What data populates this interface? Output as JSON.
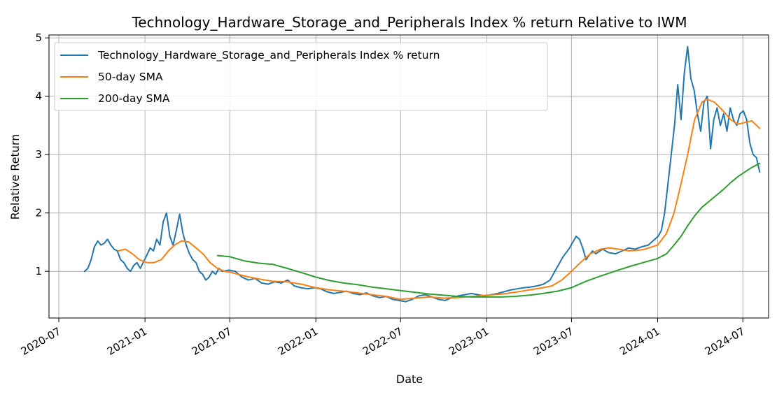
{
  "chart_data": {
    "type": "line",
    "title": "Technology_Hardware_Storage_and_Peripherals Index % return Relative to IWM",
    "xlabel": "Date",
    "ylabel": "Relative Return",
    "xlim": [
      "2020-06-10",
      "2024-08-25"
    ],
    "ylim": [
      0.2,
      5.05
    ],
    "x_ticks": [
      "2020-07",
      "2021-01",
      "2021-07",
      "2022-01",
      "2022-07",
      "2023-01",
      "2023-07",
      "2024-01",
      "2024-07"
    ],
    "y_ticks": [
      1,
      2,
      3,
      4,
      5
    ],
    "grid": true,
    "legend_position": "upper-left",
    "series": [
      {
        "name": "Technology_Hardware_Storage_and_Peripherals Index % return",
        "color": "#1f77b4",
        "points": [
          [
            "2020-08-25",
            1.0
          ],
          [
            "2020-09-01",
            1.05
          ],
          [
            "2020-09-08",
            1.2
          ],
          [
            "2020-09-15",
            1.42
          ],
          [
            "2020-09-22",
            1.52
          ],
          [
            "2020-09-29",
            1.45
          ],
          [
            "2020-10-06",
            1.48
          ],
          [
            "2020-10-13",
            1.55
          ],
          [
            "2020-10-20",
            1.45
          ],
          [
            "2020-10-27",
            1.38
          ],
          [
            "2020-11-03",
            1.35
          ],
          [
            "2020-11-10",
            1.2
          ],
          [
            "2020-11-17",
            1.15
          ],
          [
            "2020-11-24",
            1.05
          ],
          [
            "2020-12-01",
            1.0
          ],
          [
            "2020-12-08",
            1.1
          ],
          [
            "2020-12-15",
            1.15
          ],
          [
            "2020-12-22",
            1.05
          ],
          [
            "2021-01-05",
            1.28
          ],
          [
            "2021-01-12",
            1.4
          ],
          [
            "2021-01-19",
            1.35
          ],
          [
            "2021-01-26",
            1.55
          ],
          [
            "2021-02-02",
            1.45
          ],
          [
            "2021-02-09",
            1.85
          ],
          [
            "2021-02-16",
            2.0
          ],
          [
            "2021-02-23",
            1.6
          ],
          [
            "2021-03-02",
            1.45
          ],
          [
            "2021-03-09",
            1.7
          ],
          [
            "2021-03-16",
            1.98
          ],
          [
            "2021-03-23",
            1.65
          ],
          [
            "2021-03-30",
            1.45
          ],
          [
            "2021-04-06",
            1.3
          ],
          [
            "2021-04-13",
            1.2
          ],
          [
            "2021-04-20",
            1.15
          ],
          [
            "2021-04-27",
            1.0
          ],
          [
            "2021-05-04",
            0.95
          ],
          [
            "2021-05-11",
            0.85
          ],
          [
            "2021-05-18",
            0.9
          ],
          [
            "2021-05-25",
            1.0
          ],
          [
            "2021-06-01",
            0.95
          ],
          [
            "2021-06-08",
            1.05
          ],
          [
            "2021-06-15",
            1.0
          ],
          [
            "2021-06-29",
            1.02
          ],
          [
            "2021-07-13",
            1.0
          ],
          [
            "2021-07-27",
            0.9
          ],
          [
            "2021-08-10",
            0.85
          ],
          [
            "2021-08-24",
            0.88
          ],
          [
            "2021-09-07",
            0.8
          ],
          [
            "2021-09-21",
            0.78
          ],
          [
            "2021-10-05",
            0.82
          ],
          [
            "2021-10-19",
            0.8
          ],
          [
            "2021-11-02",
            0.85
          ],
          [
            "2021-11-16",
            0.75
          ],
          [
            "2021-11-30",
            0.72
          ],
          [
            "2021-12-14",
            0.7
          ],
          [
            "2021-12-28",
            0.72
          ],
          [
            "2022-01-11",
            0.7
          ],
          [
            "2022-01-25",
            0.65
          ],
          [
            "2022-02-08",
            0.62
          ],
          [
            "2022-02-22",
            0.64
          ],
          [
            "2022-03-08",
            0.66
          ],
          [
            "2022-03-22",
            0.62
          ],
          [
            "2022-04-05",
            0.6
          ],
          [
            "2022-04-19",
            0.63
          ],
          [
            "2022-05-03",
            0.58
          ],
          [
            "2022-05-17",
            0.55
          ],
          [
            "2022-05-31",
            0.57
          ],
          [
            "2022-06-14",
            0.52
          ],
          [
            "2022-06-28",
            0.5
          ],
          [
            "2022-07-12",
            0.48
          ],
          [
            "2022-07-26",
            0.52
          ],
          [
            "2022-08-09",
            0.58
          ],
          [
            "2022-08-23",
            0.6
          ],
          [
            "2022-09-06",
            0.56
          ],
          [
            "2022-09-20",
            0.52
          ],
          [
            "2022-10-04",
            0.5
          ],
          [
            "2022-10-18",
            0.55
          ],
          [
            "2022-11-01",
            0.58
          ],
          [
            "2022-11-15",
            0.6
          ],
          [
            "2022-11-29",
            0.62
          ],
          [
            "2022-12-13",
            0.6
          ],
          [
            "2022-12-27",
            0.58
          ],
          [
            "2023-01-10",
            0.6
          ],
          [
            "2023-01-24",
            0.62
          ],
          [
            "2023-02-07",
            0.65
          ],
          [
            "2023-02-21",
            0.68
          ],
          [
            "2023-03-07",
            0.7
          ],
          [
            "2023-03-21",
            0.72
          ],
          [
            "2023-04-04",
            0.73
          ],
          [
            "2023-04-18",
            0.75
          ],
          [
            "2023-05-02",
            0.78
          ],
          [
            "2023-05-16",
            0.85
          ],
          [
            "2023-05-30",
            1.05
          ],
          [
            "2023-06-13",
            1.25
          ],
          [
            "2023-06-27",
            1.4
          ],
          [
            "2023-07-04",
            1.5
          ],
          [
            "2023-07-11",
            1.6
          ],
          [
            "2023-07-18",
            1.55
          ],
          [
            "2023-07-25",
            1.4
          ],
          [
            "2023-08-01",
            1.2
          ],
          [
            "2023-08-08",
            1.28
          ],
          [
            "2023-08-15",
            1.35
          ],
          [
            "2023-08-22",
            1.3
          ],
          [
            "2023-09-05",
            1.38
          ],
          [
            "2023-09-19",
            1.32
          ],
          [
            "2023-10-03",
            1.3
          ],
          [
            "2023-10-17",
            1.35
          ],
          [
            "2023-10-31",
            1.4
          ],
          [
            "2023-11-14",
            1.38
          ],
          [
            "2023-11-28",
            1.42
          ],
          [
            "2023-12-12",
            1.45
          ],
          [
            "2023-12-26",
            1.55
          ],
          [
            "2024-01-02",
            1.6
          ],
          [
            "2024-01-09",
            1.7
          ],
          [
            "2024-01-16",
            2.0
          ],
          [
            "2024-01-23",
            2.5
          ],
          [
            "2024-01-30",
            3.0
          ],
          [
            "2024-02-06",
            3.5
          ],
          [
            "2024-02-13",
            4.2
          ],
          [
            "2024-02-20",
            3.6
          ],
          [
            "2024-02-27",
            4.4
          ],
          [
            "2024-03-05",
            4.85
          ],
          [
            "2024-03-12",
            4.3
          ],
          [
            "2024-03-19",
            4.1
          ],
          [
            "2024-03-26",
            3.7
          ],
          [
            "2024-04-02",
            3.4
          ],
          [
            "2024-04-09",
            3.9
          ],
          [
            "2024-04-16",
            4.0
          ],
          [
            "2024-04-23",
            3.1
          ],
          [
            "2024-04-30",
            3.6
          ],
          [
            "2024-05-07",
            3.8
          ],
          [
            "2024-05-14",
            3.5
          ],
          [
            "2024-05-21",
            3.7
          ],
          [
            "2024-05-28",
            3.4
          ],
          [
            "2024-06-04",
            3.8
          ],
          [
            "2024-06-11",
            3.6
          ],
          [
            "2024-06-18",
            3.5
          ],
          [
            "2024-06-25",
            3.7
          ],
          [
            "2024-07-02",
            3.75
          ],
          [
            "2024-07-09",
            3.6
          ],
          [
            "2024-07-16",
            3.2
          ],
          [
            "2024-07-23",
            3.0
          ],
          [
            "2024-07-30",
            2.95
          ],
          [
            "2024-08-06",
            2.7
          ]
        ]
      },
      {
        "name": "50-day SMA",
        "color": "#ff7f0e",
        "points": [
          [
            "2020-11-05",
            1.35
          ],
          [
            "2020-11-20",
            1.38
          ],
          [
            "2020-12-05",
            1.3
          ],
          [
            "2020-12-20",
            1.2
          ],
          [
            "2021-01-05",
            1.15
          ],
          [
            "2021-01-20",
            1.15
          ],
          [
            "2021-02-05",
            1.2
          ],
          [
            "2021-02-20",
            1.35
          ],
          [
            "2021-03-05",
            1.45
          ],
          [
            "2021-03-20",
            1.52
          ],
          [
            "2021-04-05",
            1.5
          ],
          [
            "2021-04-20",
            1.4
          ],
          [
            "2021-05-05",
            1.3
          ],
          [
            "2021-05-20",
            1.15
          ],
          [
            "2021-06-05",
            1.05
          ],
          [
            "2021-06-20",
            1.0
          ],
          [
            "2021-07-05",
            0.98
          ],
          [
            "2021-08-01",
            0.92
          ],
          [
            "2021-09-01",
            0.87
          ],
          [
            "2021-10-01",
            0.83
          ],
          [
            "2021-11-01",
            0.82
          ],
          [
            "2021-12-01",
            0.78
          ],
          [
            "2022-01-01",
            0.72
          ],
          [
            "2022-02-01",
            0.68
          ],
          [
            "2022-03-01",
            0.66
          ],
          [
            "2022-04-01",
            0.63
          ],
          [
            "2022-05-01",
            0.6
          ],
          [
            "2022-06-01",
            0.57
          ],
          [
            "2022-07-01",
            0.52
          ],
          [
            "2022-08-01",
            0.54
          ],
          [
            "2022-09-01",
            0.56
          ],
          [
            "2022-10-01",
            0.54
          ],
          [
            "2022-11-01",
            0.55
          ],
          [
            "2022-12-01",
            0.57
          ],
          [
            "2023-01-01",
            0.59
          ],
          [
            "2023-02-01",
            0.61
          ],
          [
            "2023-03-01",
            0.64
          ],
          [
            "2023-04-01",
            0.68
          ],
          [
            "2023-05-01",
            0.72
          ],
          [
            "2023-05-20",
            0.75
          ],
          [
            "2023-06-10",
            0.85
          ],
          [
            "2023-07-01",
            1.0
          ],
          [
            "2023-07-20",
            1.15
          ],
          [
            "2023-08-10",
            1.3
          ],
          [
            "2023-09-01",
            1.38
          ],
          [
            "2023-09-20",
            1.4
          ],
          [
            "2023-10-10",
            1.38
          ],
          [
            "2023-11-01",
            1.35
          ],
          [
            "2023-12-01",
            1.37
          ],
          [
            "2024-01-01",
            1.45
          ],
          [
            "2024-01-20",
            1.65
          ],
          [
            "2024-02-05",
            2.0
          ],
          [
            "2024-02-20",
            2.5
          ],
          [
            "2024-03-05",
            3.0
          ],
          [
            "2024-03-20",
            3.6
          ],
          [
            "2024-04-05",
            3.9
          ],
          [
            "2024-04-15",
            3.95
          ],
          [
            "2024-05-01",
            3.9
          ],
          [
            "2024-05-20",
            3.75
          ],
          [
            "2024-06-05",
            3.6
          ],
          [
            "2024-06-20",
            3.52
          ],
          [
            "2024-07-05",
            3.55
          ],
          [
            "2024-07-20",
            3.58
          ],
          [
            "2024-08-06",
            3.45
          ]
        ]
      },
      {
        "name": "200-day SMA",
        "color": "#2ca02c",
        "points": [
          [
            "2021-06-05",
            1.27
          ],
          [
            "2021-07-01",
            1.25
          ],
          [
            "2021-08-01",
            1.18
          ],
          [
            "2021-09-01",
            1.14
          ],
          [
            "2021-10-01",
            1.12
          ],
          [
            "2021-11-01",
            1.05
          ],
          [
            "2021-12-01",
            0.98
          ],
          [
            "2022-01-01",
            0.9
          ],
          [
            "2022-02-01",
            0.84
          ],
          [
            "2022-03-01",
            0.8
          ],
          [
            "2022-04-01",
            0.77
          ],
          [
            "2022-05-01",
            0.73
          ],
          [
            "2022-06-01",
            0.7
          ],
          [
            "2022-07-01",
            0.67
          ],
          [
            "2022-08-01",
            0.64
          ],
          [
            "2022-09-01",
            0.61
          ],
          [
            "2022-10-01",
            0.59
          ],
          [
            "2022-11-01",
            0.57
          ],
          [
            "2022-12-01",
            0.56
          ],
          [
            "2023-01-01",
            0.56
          ],
          [
            "2023-02-01",
            0.56
          ],
          [
            "2023-03-01",
            0.57
          ],
          [
            "2023-04-01",
            0.59
          ],
          [
            "2023-05-01",
            0.62
          ],
          [
            "2023-06-01",
            0.66
          ],
          [
            "2023-07-01",
            0.72
          ],
          [
            "2023-08-01",
            0.83
          ],
          [
            "2023-09-01",
            0.92
          ],
          [
            "2023-10-01",
            1.0
          ],
          [
            "2023-11-01",
            1.08
          ],
          [
            "2023-12-01",
            1.15
          ],
          [
            "2024-01-01",
            1.22
          ],
          [
            "2024-01-20",
            1.3
          ],
          [
            "2024-02-05",
            1.45
          ],
          [
            "2024-02-20",
            1.6
          ],
          [
            "2024-03-05",
            1.78
          ],
          [
            "2024-03-20",
            1.95
          ],
          [
            "2024-04-05",
            2.1
          ],
          [
            "2024-04-20",
            2.2
          ],
          [
            "2024-05-05",
            2.3
          ],
          [
            "2024-05-20",
            2.4
          ],
          [
            "2024-06-05",
            2.52
          ],
          [
            "2024-06-20",
            2.62
          ],
          [
            "2024-07-05",
            2.7
          ],
          [
            "2024-07-20",
            2.78
          ],
          [
            "2024-08-06",
            2.85
          ]
        ]
      }
    ]
  }
}
